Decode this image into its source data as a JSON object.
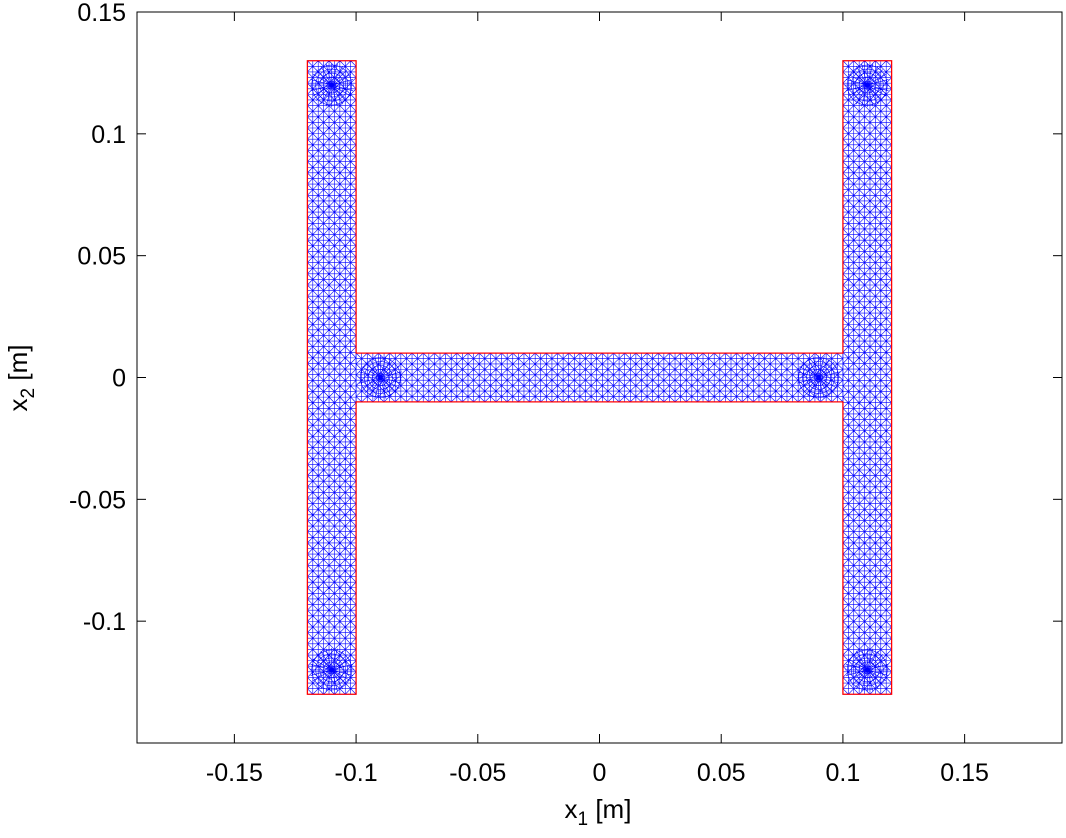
{
  "chart_data": {
    "type": "mesh",
    "xlabel": "x",
    "xlabel_sub": "1",
    "xlabel_unit": " [m]",
    "ylabel": "x",
    "ylabel_sub": "2",
    "ylabel_unit": " [m]",
    "xlim": [
      -0.19,
      0.19
    ],
    "ylim": [
      -0.15,
      0.15
    ],
    "xticks": [
      -0.15,
      -0.1,
      -0.05,
      0,
      0.05,
      0.1,
      0.15
    ],
    "xtick_labels": [
      "-0.15",
      "-0.1",
      "-0.05",
      "0",
      "0.05",
      "0.1",
      "0.15"
    ],
    "yticks": [
      -0.1,
      -0.05,
      0,
      0.05,
      0.1,
      0.15
    ],
    "ytick_labels": [
      "-0.1",
      "-0.05",
      "0",
      "0.05",
      "0.1",
      "0.15"
    ],
    "grid": false,
    "regions": [
      {
        "name": "left-leg",
        "x": [
          -0.12,
          -0.1
        ],
        "y": [
          -0.13,
          0.13
        ]
      },
      {
        "name": "right-leg",
        "x": [
          0.1,
          0.12
        ],
        "y": [
          -0.13,
          0.13
        ]
      },
      {
        "name": "crossbar",
        "x": [
          -0.1,
          0.1
        ],
        "y": [
          -0.01,
          0.01
        ]
      }
    ],
    "mesh_refinement_points": [
      [
        -0.11,
        0.12
      ],
      [
        -0.11,
        -0.12
      ],
      [
        0.11,
        0.12
      ],
      [
        0.11,
        -0.12
      ],
      [
        -0.09,
        0.0
      ],
      [
        0.09,
        0.0
      ]
    ],
    "colors": {
      "mesh": "#0000ff",
      "boundary": "#ff0000",
      "axes": "#000000"
    }
  }
}
